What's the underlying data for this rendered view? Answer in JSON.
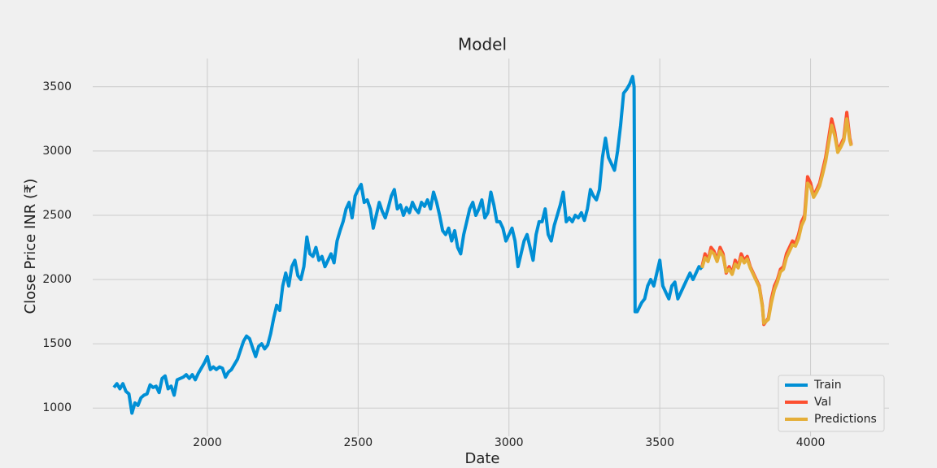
{
  "chart_data": {
    "type": "line",
    "title": "Model",
    "x_label": "Date",
    "y_label": "Close Price INR (₹)",
    "xlim": [
      1620,
      4260
    ],
    "ylim": [
      780,
      3720
    ],
    "xticks": [
      2000,
      2500,
      3000,
      3500,
      4000
    ],
    "yticks": [
      1000,
      1500,
      2000,
      2500,
      3000,
      3500
    ],
    "grid": true,
    "legend": "lower right",
    "series": [
      {
        "name": "Train",
        "color": "#008fd5",
        "x": [
          1690,
          1700,
          1710,
          1720,
          1730,
          1740,
          1750,
          1760,
          1770,
          1780,
          1790,
          1800,
          1810,
          1820,
          1830,
          1840,
          1850,
          1860,
          1870,
          1880,
          1890,
          1900,
          1910,
          1920,
          1930,
          1940,
          1950,
          1960,
          1970,
          1980,
          1990,
          2000,
          2010,
          2020,
          2030,
          2040,
          2050,
          2060,
          2070,
          2080,
          2090,
          2100,
          2110,
          2120,
          2130,
          2140,
          2150,
          2160,
          2170,
          2180,
          2190,
          2200,
          2210,
          2220,
          2230,
          2240,
          2250,
          2260,
          2270,
          2280,
          2290,
          2300,
          2310,
          2320,
          2330,
          2340,
          2350,
          2360,
          2370,
          2380,
          2390,
          2400,
          2410,
          2420,
          2430,
          2440,
          2450,
          2460,
          2470,
          2480,
          2490,
          2500,
          2510,
          2520,
          2530,
          2540,
          2550,
          2560,
          2570,
          2580,
          2590,
          2600,
          2610,
          2620,
          2630,
          2640,
          2650,
          2660,
          2670,
          2680,
          2690,
          2700,
          2710,
          2720,
          2730,
          2740,
          2750,
          2760,
          2770,
          2780,
          2790,
          2800,
          2810,
          2820,
          2830,
          2840,
          2850,
          2860,
          2870,
          2880,
          2890,
          2900,
          2910,
          2920,
          2930,
          2940,
          2950,
          2960,
          2970,
          2980,
          2990,
          3000,
          3010,
          3020,
          3030,
          3040,
          3050,
          3060,
          3070,
          3080,
          3090,
          3100,
          3110,
          3120,
          3130,
          3140,
          3150,
          3160,
          3170,
          3180,
          3190,
          3200,
          3210,
          3220,
          3230,
          3240,
          3250,
          3260,
          3270,
          3280,
          3290,
          3300,
          3310,
          3320,
          3330,
          3340,
          3350,
          3360,
          3370,
          3380,
          3390,
          3400,
          3410,
          3415,
          3418,
          3425,
          3440,
          3450,
          3460,
          3470,
          3480,
          3490,
          3500,
          3510,
          3520,
          3530,
          3540,
          3550,
          3560,
          3570,
          3580,
          3590,
          3600,
          3610,
          3620,
          3630,
          3640
        ],
        "values": [
          1160,
          1190,
          1150,
          1190,
          1130,
          1110,
          960,
          1040,
          1020,
          1080,
          1100,
          1110,
          1180,
          1160,
          1170,
          1120,
          1230,
          1250,
          1150,
          1170,
          1100,
          1220,
          1230,
          1240,
          1260,
          1230,
          1260,
          1220,
          1270,
          1310,
          1350,
          1400,
          1300,
          1320,
          1300,
          1320,
          1310,
          1240,
          1280,
          1300,
          1340,
          1380,
          1450,
          1520,
          1560,
          1540,
          1470,
          1400,
          1480,
          1500,
          1460,
          1490,
          1580,
          1700,
          1800,
          1760,
          1950,
          2050,
          1950,
          2100,
          2150,
          2030,
          2000,
          2100,
          2330,
          2200,
          2180,
          2250,
          2150,
          2180,
          2100,
          2150,
          2200,
          2130,
          2300,
          2380,
          2450,
          2550,
          2600,
          2480,
          2650,
          2700,
          2740,
          2600,
          2620,
          2550,
          2400,
          2500,
          2600,
          2530,
          2480,
          2560,
          2650,
          2700,
          2550,
          2580,
          2500,
          2560,
          2520,
          2600,
          2550,
          2520,
          2600,
          2570,
          2620,
          2550,
          2680,
          2600,
          2500,
          2380,
          2350,
          2400,
          2300,
          2380,
          2250,
          2200,
          2350,
          2450,
          2550,
          2600,
          2500,
          2550,
          2620,
          2480,
          2520,
          2680,
          2580,
          2450,
          2450,
          2400,
          2300,
          2350,
          2400,
          2300,
          2100,
          2200,
          2300,
          2350,
          2250,
          2150,
          2350,
          2450,
          2450,
          2550,
          2350,
          2300,
          2420,
          2500,
          2580,
          2680,
          2450,
          2480,
          2450,
          2500,
          2480,
          2520,
          2460,
          2550,
          2700,
          2650,
          2620,
          2700,
          2950,
          3100,
          2950,
          2900,
          2850,
          3000,
          3200,
          3450,
          3480,
          3520,
          3580,
          3500,
          1750,
          1750,
          1820,
          1850,
          1950,
          2000,
          1950,
          2050,
          2150,
          1950,
          1900,
          1850,
          1950,
          1980,
          1850,
          1900,
          1950,
          2000,
          2050,
          2000,
          2050,
          2100,
          2080
        ]
      },
      {
        "name": "Val",
        "color": "#fc4f30",
        "x": [
          3640,
          3650,
          3660,
          3670,
          3680,
          3690,
          3700,
          3710,
          3720,
          3730,
          3740,
          3750,
          3760,
          3770,
          3780,
          3790,
          3800,
          3810,
          3820,
          3830,
          3840,
          3845,
          3860,
          3870,
          3880,
          3890,
          3900,
          3910,
          3920,
          3930,
          3940,
          3950,
          3960,
          3970,
          3980,
          3990,
          4000,
          4010,
          4020,
          4030,
          4040,
          4050,
          4060,
          4070,
          4080,
          4090,
          4100,
          4110,
          4120,
          4130,
          4135
        ],
        "values": [
          2100,
          2200,
          2150,
          2250,
          2220,
          2150,
          2250,
          2200,
          2050,
          2100,
          2050,
          2150,
          2100,
          2200,
          2150,
          2180,
          2100,
          2050,
          2000,
          1950,
          1800,
          1650,
          1700,
          1850,
          1950,
          2000,
          2080,
          2100,
          2200,
          2250,
          2300,
          2280,
          2350,
          2450,
          2500,
          2800,
          2750,
          2650,
          2700,
          2750,
          2850,
          2950,
          3100,
          3250,
          3150,
          3000,
          3050,
          3100,
          3300,
          3100,
          3050
        ]
      },
      {
        "name": "Predictions",
        "color": "#e5ae38",
        "x": [
          3640,
          3650,
          3660,
          3670,
          3680,
          3690,
          3700,
          3710,
          3720,
          3730,
          3740,
          3750,
          3760,
          3770,
          3780,
          3790,
          3800,
          3810,
          3820,
          3830,
          3840,
          3845,
          3860,
          3870,
          3880,
          3890,
          3900,
          3910,
          3920,
          3930,
          3940,
          3950,
          3960,
          3970,
          3980,
          3990,
          4000,
          4010,
          4020,
          4030,
          4040,
          4050,
          4060,
          4070,
          4080,
          4090,
          4100,
          4110,
          4120,
          4130,
          4135
        ],
        "values": [
          2090,
          2170,
          2140,
          2220,
          2200,
          2140,
          2220,
          2180,
          2060,
          2080,
          2040,
          2120,
          2090,
          2170,
          2130,
          2160,
          2090,
          2040,
          1990,
          1940,
          1790,
          1660,
          1690,
          1820,
          1920,
          1980,
          2060,
          2080,
          2170,
          2220,
          2270,
          2260,
          2320,
          2420,
          2470,
          2750,
          2720,
          2640,
          2680,
          2730,
          2820,
          2920,
          3060,
          3200,
          3120,
          2990,
          3030,
          3080,
          3250,
          3080,
          3040
        ]
      }
    ]
  }
}
